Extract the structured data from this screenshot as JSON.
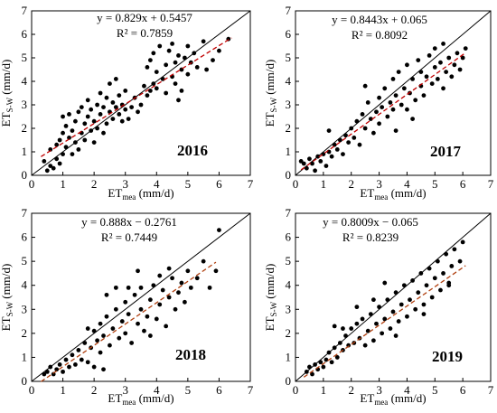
{
  "chart_data": [
    {
      "type": "scatter",
      "year_label": "2016",
      "equation": "y = 0.829x + 0.5457",
      "r2": "R² = 0.7859",
      "xlabel": {
        "main": "ET",
        "sub": "mea",
        "unit": " (mm/d)"
      },
      "ylabel": {
        "main": "ET",
        "sub": "S-W",
        "unit": " (mm/d)"
      },
      "xlim": [
        0,
        7
      ],
      "ylim": [
        0,
        7
      ],
      "xticks": [
        "0",
        "1",
        "2",
        "3",
        "4",
        "5",
        "6",
        "7"
      ],
      "yticks": [
        "0",
        "1",
        "2",
        "3",
        "4",
        "5",
        "6",
        "7"
      ],
      "slope": 0.829,
      "intercept": 0.5457,
      "fit_range": [
        0.3,
        6.4
      ],
      "fit_color": "#c00000",
      "points": [
        [
          0.4,
          0.6
        ],
        [
          0.5,
          0.2
        ],
        [
          0.6,
          0.4
        ],
        [
          0.6,
          1.1
        ],
        [
          0.7,
          0.3
        ],
        [
          0.8,
          0.7
        ],
        [
          0.8,
          1.3
        ],
        [
          0.9,
          0.5
        ],
        [
          0.9,
          1.5
        ],
        [
          1.0,
          0.9
        ],
        [
          1.0,
          1.8
        ],
        [
          1.0,
          2.5
        ],
        [
          1.1,
          1.2
        ],
        [
          1.1,
          2.1
        ],
        [
          1.2,
          1.6
        ],
        [
          1.2,
          2.6
        ],
        [
          1.3,
          0.9
        ],
        [
          1.3,
          1.9
        ],
        [
          1.4,
          1.4
        ],
        [
          1.4,
          2.3
        ],
        [
          1.5,
          2.7
        ],
        [
          1.5,
          1.1
        ],
        [
          1.6,
          1.8
        ],
        [
          1.6,
          2.9
        ],
        [
          1.7,
          2.2
        ],
        [
          1.7,
          1.5
        ],
        [
          1.8,
          2.5
        ],
        [
          1.8,
          3.2
        ],
        [
          1.9,
          1.9
        ],
        [
          1.9,
          2.8
        ],
        [
          2.0,
          2.3
        ],
        [
          2.0,
          1.4
        ],
        [
          2.1,
          3.0
        ],
        [
          2.1,
          2.0
        ],
        [
          2.2,
          2.6
        ],
        [
          2.2,
          3.5
        ],
        [
          2.3,
          1.8
        ],
        [
          2.3,
          2.9
        ],
        [
          2.4,
          3.3
        ],
        [
          2.4,
          2.2
        ],
        [
          2.5,
          2.7
        ],
        [
          2.5,
          3.9
        ],
        [
          2.6,
          2.4
        ],
        [
          2.6,
          3.1
        ],
        [
          2.7,
          2.9
        ],
        [
          2.7,
          4.1
        ],
        [
          2.8,
          2.6
        ],
        [
          2.8,
          3.4
        ],
        [
          2.9,
          2.3
        ],
        [
          2.9,
          3.0
        ],
        [
          3.0,
          2.8
        ],
        [
          3.0,
          3.6
        ],
        [
          3.1,
          2.4
        ],
        [
          3.2,
          2.9
        ],
        [
          3.3,
          3.3
        ],
        [
          3.4,
          2.7
        ],
        [
          3.5,
          3.0
        ],
        [
          3.6,
          3.8
        ],
        [
          3.7,
          3.4
        ],
        [
          3.7,
          4.6
        ],
        [
          3.8,
          3.6
        ],
        [
          3.8,
          4.9
        ],
        [
          3.9,
          3.9
        ],
        [
          3.9,
          5.2
        ],
        [
          4.0,
          3.7
        ],
        [
          4.0,
          4.4
        ],
        [
          4.1,
          5.5
        ],
        [
          4.2,
          4.1
        ],
        [
          4.3,
          4.7
        ],
        [
          4.3,
          3.5
        ],
        [
          4.4,
          5.3
        ],
        [
          4.5,
          4.2
        ],
        [
          4.5,
          5.6
        ],
        [
          4.6,
          3.9
        ],
        [
          4.6,
          4.8
        ],
        [
          4.7,
          3.2
        ],
        [
          4.7,
          5.1
        ],
        [
          4.8,
          4.5
        ],
        [
          4.8,
          3.6
        ],
        [
          4.9,
          5.0
        ],
        [
          5.0,
          4.3
        ],
        [
          5.0,
          5.5
        ],
        [
          5.1,
          4.8
        ],
        [
          5.2,
          5.2
        ],
        [
          5.3,
          4.6
        ],
        [
          5.5,
          5.7
        ],
        [
          5.6,
          4.5
        ],
        [
          5.8,
          4.9
        ],
        [
          6.0,
          5.3
        ],
        [
          6.3,
          5.8
        ]
      ]
    },
    {
      "type": "scatter",
      "year_label": "2017",
      "equation": "y = 0.8443x + 0.065",
      "r2": "R² = 0.8092",
      "xlabel": {
        "main": "ET",
        "sub": "mea",
        "unit": " (mm/d)"
      },
      "ylabel": {
        "main": "ET",
        "sub": "S-W",
        "unit": " (mm/d)"
      },
      "xlim": [
        0,
        7
      ],
      "ylim": [
        0,
        7
      ],
      "xticks": [
        "0",
        "1",
        "2",
        "3",
        "4",
        "5",
        "6",
        "7"
      ],
      "yticks": [
        "0",
        "1",
        "2",
        "3",
        "4",
        "5",
        "6",
        "7"
      ],
      "slope": 0.8443,
      "intercept": 0.065,
      "fit_range": [
        0.2,
        6.1
      ],
      "fit_color": "#c00000",
      "points": [
        [
          0.2,
          0.6
        ],
        [
          0.3,
          0.5
        ],
        [
          0.4,
          0.3
        ],
        [
          0.5,
          0.7
        ],
        [
          0.6,
          0.5
        ],
        [
          0.7,
          0.2
        ],
        [
          0.8,
          0.8
        ],
        [
          0.9,
          0.6
        ],
        [
          1.0,
          0.9
        ],
        [
          1.1,
          0.4
        ],
        [
          1.2,
          1.0
        ],
        [
          1.3,
          0.8
        ],
        [
          1.4,
          1.3
        ],
        [
          1.5,
          1.1
        ],
        [
          1.6,
          1.5
        ],
        [
          1.7,
          0.9
        ],
        [
          1.8,
          1.7
        ],
        [
          1.9,
          1.4
        ],
        [
          2.0,
          2.0
        ],
        [
          2.1,
          1.6
        ],
        [
          2.2,
          2.3
        ],
        [
          2.3,
          1.3
        ],
        [
          2.4,
          2.6
        ],
        [
          2.5,
          2.0
        ],
        [
          2.6,
          3.1
        ],
        [
          2.7,
          2.4
        ],
        [
          2.8,
          1.8
        ],
        [
          2.9,
          2.7
        ],
        [
          3.0,
          3.3
        ],
        [
          3.0,
          2.2
        ],
        [
          3.1,
          2.9
        ],
        [
          3.2,
          3.7
        ],
        [
          3.3,
          2.5
        ],
        [
          3.4,
          3.1
        ],
        [
          3.5,
          4.1
        ],
        [
          3.5,
          2.8
        ],
        [
          3.6,
          3.4
        ],
        [
          3.7,
          4.4
        ],
        [
          3.8,
          3.0
        ],
        [
          3.9,
          3.7
        ],
        [
          4.0,
          4.7
        ],
        [
          4.0,
          2.8
        ],
        [
          4.1,
          3.5
        ],
        [
          4.2,
          4.1
        ],
        [
          4.3,
          3.2
        ],
        [
          4.4,
          4.9
        ],
        [
          4.5,
          3.8
        ],
        [
          4.5,
          4.4
        ],
        [
          4.6,
          3.4
        ],
        [
          4.7,
          4.2
        ],
        [
          4.8,
          5.1
        ],
        [
          4.9,
          3.9
        ],
        [
          5.0,
          4.6
        ],
        [
          5.0,
          5.4
        ],
        [
          5.1,
          4.1
        ],
        [
          5.2,
          4.8
        ],
        [
          5.3,
          3.7
        ],
        [
          5.4,
          4.4
        ],
        [
          5.5,
          5.0
        ],
        [
          5.6,
          4.2
        ],
        [
          5.7,
          4.7
        ],
        [
          5.8,
          5.2
        ],
        [
          5.9,
          4.5
        ],
        [
          6.0,
          5.0
        ],
        [
          6.1,
          5.4
        ],
        [
          4.2,
          2.4
        ],
        [
          3.6,
          1.9
        ],
        [
          2.5,
          3.8
        ],
        [
          1.2,
          1.9
        ],
        [
          5.3,
          5.6
        ]
      ]
    },
    {
      "type": "scatter",
      "year_label": "2018",
      "equation": "y = 0.888x − 0.2761",
      "r2": "R² = 0.7449",
      "xlabel": {
        "main": "ET",
        "sub": "mea",
        "unit": " (mm/d)"
      },
      "ylabel": {
        "main": "ET",
        "sub": "S-W",
        "unit": " (mm/d)"
      },
      "xlim": [
        0,
        7
      ],
      "ylim": [
        0,
        7
      ],
      "xticks": [
        "0",
        "1",
        "2",
        "3",
        "4",
        "5",
        "6",
        "7"
      ],
      "yticks": [
        "0",
        "1",
        "2",
        "3",
        "4",
        "5",
        "6",
        "7"
      ],
      "slope": 0.888,
      "intercept": -0.2761,
      "fit_range": [
        0.3,
        5.9
      ],
      "fit_color": "#b04010",
      "points": [
        [
          0.4,
          0.3
        ],
        [
          0.5,
          0.4
        ],
        [
          0.6,
          0.6
        ],
        [
          0.7,
          0.3
        ],
        [
          0.8,
          0.5
        ],
        [
          0.9,
          0.7
        ],
        [
          1.0,
          0.4
        ],
        [
          1.1,
          0.9
        ],
        [
          1.2,
          0.6
        ],
        [
          1.3,
          1.1
        ],
        [
          1.4,
          0.7
        ],
        [
          1.5,
          1.3
        ],
        [
          1.6,
          0.9
        ],
        [
          1.7,
          1.6
        ],
        [
          1.8,
          0.8
        ],
        [
          1.9,
          1.4
        ],
        [
          2.0,
          2.1
        ],
        [
          2.0,
          0.6
        ],
        [
          2.1,
          1.7
        ],
        [
          2.2,
          2.4
        ],
        [
          2.2,
          1.2
        ],
        [
          2.3,
          1.9
        ],
        [
          2.3,
          0.5
        ],
        [
          2.4,
          2.7
        ],
        [
          2.5,
          1.5
        ],
        [
          2.6,
          2.2
        ],
        [
          2.7,
          3.0
        ],
        [
          2.8,
          1.8
        ],
        [
          2.9,
          2.5
        ],
        [
          3.0,
          3.3
        ],
        [
          3.0,
          2.0
        ],
        [
          3.1,
          2.8
        ],
        [
          3.2,
          1.6
        ],
        [
          3.3,
          3.6
        ],
        [
          3.4,
          2.4
        ],
        [
          3.5,
          3.0
        ],
        [
          3.5,
          3.9
        ],
        [
          3.6,
          2.1
        ],
        [
          3.7,
          2.7
        ],
        [
          3.8,
          3.4
        ],
        [
          3.9,
          4.0
        ],
        [
          4.0,
          2.6
        ],
        [
          4.1,
          3.2
        ],
        [
          4.2,
          3.8
        ],
        [
          4.3,
          2.3
        ],
        [
          4.4,
          3.5
        ],
        [
          4.5,
          4.3
        ],
        [
          4.6,
          3.0
        ],
        [
          4.7,
          3.7
        ],
        [
          4.8,
          4.1
        ],
        [
          4.9,
          3.3
        ],
        [
          5.0,
          4.6
        ],
        [
          5.1,
          3.9
        ],
        [
          5.3,
          4.3
        ],
        [
          5.5,
          5.0
        ],
        [
          5.7,
          3.9
        ],
        [
          5.9,
          4.6
        ],
        [
          6.0,
          6.3
        ],
        [
          2.4,
          3.6
        ],
        [
          3.4,
          4.6
        ],
        [
          1.8,
          2.2
        ],
        [
          2.7,
          3.9
        ],
        [
          3.8,
          1.9
        ],
        [
          4.4,
          4.7
        ],
        [
          3.1,
          3.9
        ],
        [
          4.1,
          4.4
        ]
      ]
    },
    {
      "type": "scatter",
      "year_label": "2019",
      "equation": "y = 0.8009x − 0.065",
      "r2": "R² = 0.8239",
      "xlabel": {
        "main": "ET",
        "sub": "mea",
        "unit": " (mm/d)"
      },
      "ylabel": {
        "main": "ET",
        "sub": "S-W",
        "unit": " (mm/d)"
      },
      "xlim": [
        0,
        7
      ],
      "ylim": [
        0,
        7
      ],
      "xticks": [
        "0",
        "1",
        "2",
        "3",
        "4",
        "5",
        "6",
        "7"
      ],
      "yticks": [
        "0",
        "1",
        "2",
        "3",
        "4",
        "5",
        "6",
        "7"
      ],
      "slope": 0.8009,
      "intercept": -0.065,
      "fit_range": [
        0.3,
        6.1
      ],
      "fit_color": "#b04010",
      "points": [
        [
          0.4,
          0.4
        ],
        [
          0.5,
          0.6
        ],
        [
          0.6,
          0.3
        ],
        [
          0.7,
          0.7
        ],
        [
          0.8,
          0.5
        ],
        [
          0.9,
          0.8
        ],
        [
          1.0,
          0.6
        ],
        [
          1.1,
          0.9
        ],
        [
          1.2,
          1.2
        ],
        [
          1.3,
          0.8
        ],
        [
          1.4,
          1.4
        ],
        [
          1.5,
          1.0
        ],
        [
          1.6,
          1.6
        ],
        [
          1.7,
          1.3
        ],
        [
          1.8,
          1.9
        ],
        [
          1.9,
          1.5
        ],
        [
          2.0,
          2.2
        ],
        [
          2.1,
          1.6
        ],
        [
          2.2,
          2.4
        ],
        [
          2.3,
          1.8
        ],
        [
          2.4,
          2.6
        ],
        [
          2.5,
          1.5
        ],
        [
          2.6,
          2.1
        ],
        [
          2.7,
          2.8
        ],
        [
          2.8,
          1.7
        ],
        [
          2.9,
          2.4
        ],
        [
          3.0,
          3.1
        ],
        [
          3.1,
          2.0
        ],
        [
          3.2,
          2.6
        ],
        [
          3.3,
          3.4
        ],
        [
          3.4,
          2.2
        ],
        [
          3.5,
          2.9
        ],
        [
          3.6,
          3.7
        ],
        [
          3.7,
          2.5
        ],
        [
          3.8,
          3.2
        ],
        [
          3.9,
          4.0
        ],
        [
          4.0,
          2.7
        ],
        [
          4.1,
          3.4
        ],
        [
          4.2,
          4.2
        ],
        [
          4.3,
          3.0
        ],
        [
          4.4,
          3.7
        ],
        [
          4.5,
          4.5
        ],
        [
          4.6,
          3.2
        ],
        [
          4.7,
          4.0
        ],
        [
          4.8,
          4.7
        ],
        [
          4.9,
          3.5
        ],
        [
          5.0,
          4.3
        ],
        [
          5.1,
          5.0
        ],
        [
          5.2,
          3.8
        ],
        [
          5.3,
          4.5
        ],
        [
          5.4,
          5.3
        ],
        [
          5.5,
          4.1
        ],
        [
          5.6,
          4.8
        ],
        [
          5.7,
          5.5
        ],
        [
          5.9,
          5.0
        ],
        [
          6.0,
          5.8
        ],
        [
          2.2,
          3.1
        ],
        [
          1.4,
          2.3
        ],
        [
          3.2,
          4.1
        ],
        [
          4.6,
          2.8
        ],
        [
          5.5,
          4.0
        ],
        [
          3.6,
          1.9
        ],
        [
          2.8,
          3.4
        ],
        [
          1.7,
          2.2
        ]
      ]
    }
  ]
}
